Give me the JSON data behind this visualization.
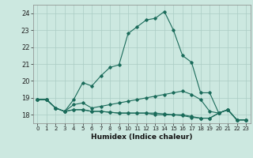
{
  "title": "",
  "xlabel": "Humidex (Indice chaleur)",
  "xlim": [
    -0.5,
    23.5
  ],
  "ylim": [
    17.5,
    24.5
  ],
  "yticks": [
    18,
    19,
    20,
    21,
    22,
    23,
    24
  ],
  "xticks": [
    0,
    1,
    2,
    3,
    4,
    5,
    6,
    7,
    8,
    9,
    10,
    11,
    12,
    13,
    14,
    15,
    16,
    17,
    18,
    19,
    20,
    21,
    22,
    23
  ],
  "bg_color": "#cce8e0",
  "grid_color": "#aaccc4",
  "line_color": "#1a6b5a",
  "series": [
    [
      18.9,
      18.9,
      18.4,
      18.2,
      18.9,
      19.9,
      19.7,
      20.3,
      20.8,
      20.95,
      22.8,
      23.2,
      23.6,
      23.7,
      24.1,
      23.0,
      21.5,
      21.1,
      19.3,
      19.3,
      18.1,
      18.3,
      17.7,
      17.7
    ],
    [
      18.9,
      18.9,
      18.4,
      18.2,
      18.6,
      18.7,
      18.4,
      18.5,
      18.6,
      18.7,
      18.8,
      18.9,
      19.0,
      19.1,
      19.2,
      19.3,
      19.4,
      19.2,
      18.9,
      18.2,
      18.1,
      18.3,
      17.7,
      17.7
    ],
    [
      18.9,
      18.9,
      18.4,
      18.2,
      18.3,
      18.3,
      18.2,
      18.2,
      18.15,
      18.1,
      18.1,
      18.1,
      18.1,
      18.1,
      18.05,
      18.0,
      18.0,
      17.9,
      17.8,
      17.8,
      18.1,
      18.3,
      17.7,
      17.7
    ],
    [
      18.9,
      18.9,
      18.4,
      18.2,
      18.3,
      18.3,
      18.2,
      18.2,
      18.15,
      18.1,
      18.1,
      18.1,
      18.1,
      18.0,
      18.0,
      18.0,
      17.95,
      17.85,
      17.8,
      17.8,
      18.1,
      18.3,
      17.7,
      17.7
    ]
  ]
}
